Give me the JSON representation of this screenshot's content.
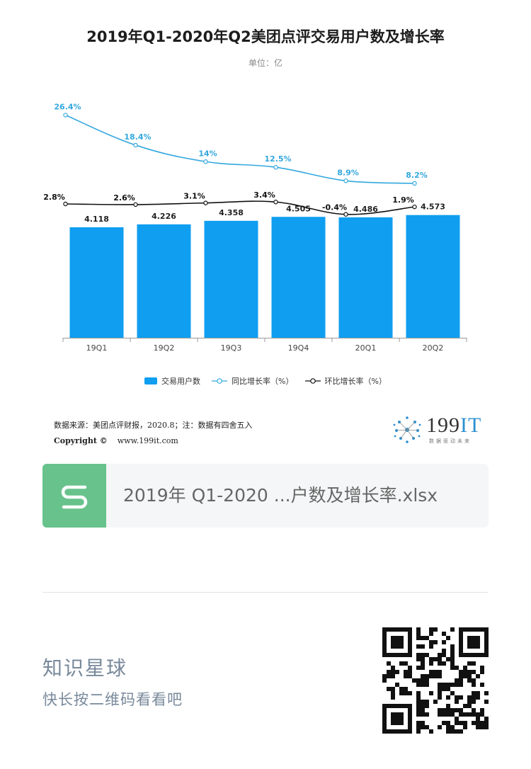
{
  "title": "2019年Q1-2020年Q2美团点评交易用户数及增长率",
  "subtitle": "单位：亿",
  "chart_data": {
    "type": "bar",
    "categories": [
      "19Q1",
      "19Q2",
      "19Q3",
      "19Q4",
      "20Q1",
      "20Q2"
    ],
    "series": [
      {
        "name": "交易用户数",
        "type": "bar",
        "values": [
          4.118,
          4.226,
          4.358,
          4.505,
          4.486,
          4.573
        ],
        "labels": [
          "4.118",
          "4.226",
          "4.358",
          "4.505",
          "4.486",
          "4.573"
        ],
        "color": "#0f9ef0"
      },
      {
        "name": "同比增长率（%）",
        "type": "line",
        "values": [
          26.4,
          18.4,
          14,
          12.5,
          8.9,
          8.2
        ],
        "labels": [
          "26.4%",
          "18.4%",
          "14%",
          "12.5%",
          "8.9%",
          "8.2%"
        ],
        "color": "#33a8df"
      },
      {
        "name": "环比增长率（%）",
        "type": "line",
        "values": [
          2.8,
          2.6,
          3.1,
          3.4,
          -0.4,
          1.9
        ],
        "labels": [
          "2.8%",
          "2.6%",
          "3.1%",
          "3.4%",
          "-0.4%",
          "1.9%"
        ],
        "color": "#111111"
      }
    ],
    "legend_position": "bottom",
    "grid": false
  },
  "source": {
    "line1": "数据来源：美团点评财报，2020.8；注：数据有四舍五入",
    "copyright_label": "Copyright ©",
    "copyright_url": "www.199it.com"
  },
  "logo": {
    "main": "199",
    "accent": "IT",
    "tagline": "数据驱动未来"
  },
  "file": {
    "icon_letter": "S",
    "name": "2019年 Q1-2020 ...户数及增长率.xlsx",
    "icon_color": "#68c28b"
  },
  "footer": {
    "title": "知识星球",
    "subtitle": "快长按二维码看看吧"
  }
}
